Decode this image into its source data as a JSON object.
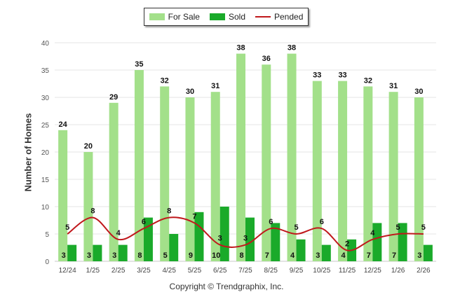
{
  "chart_data": {
    "type": "bar",
    "ylabel": "Number of Homes",
    "ylim": [
      0,
      40
    ],
    "yticks": [
      "0",
      "5",
      "10",
      "15",
      "20",
      "25",
      "30",
      "35",
      "40"
    ],
    "categories": [
      "12/24",
      "1/25",
      "2/25",
      "3/25",
      "4/25",
      "5/25",
      "6/25",
      "7/25",
      "8/25",
      "9/25",
      "10/25",
      "11/25",
      "12/25",
      "1/26",
      "2/26"
    ],
    "series": [
      {
        "name": "For Sale",
        "kind": "bar",
        "color": "#a3e08a",
        "values": [
          24,
          20,
          29,
          35,
          32,
          30,
          31,
          38,
          36,
          38,
          33,
          33,
          32,
          31,
          30
        ]
      },
      {
        "name": "Sold",
        "kind": "bar",
        "color": "#1aaa2a",
        "values": [
          3,
          3,
          3,
          8,
          5,
          9,
          10,
          8,
          7,
          4,
          3,
          4,
          7,
          7,
          3
        ]
      },
      {
        "name": "Pended",
        "kind": "line",
        "color": "#c0181c",
        "values": [
          5,
          8,
          4,
          6,
          8,
          7,
          3,
          3,
          6,
          5,
          6,
          2,
          4,
          5,
          5
        ]
      }
    ],
    "legend_position": "top-center",
    "grid": "horizontal"
  },
  "footer": {
    "copyright": "Copyright © Trendgraphix, Inc."
  }
}
